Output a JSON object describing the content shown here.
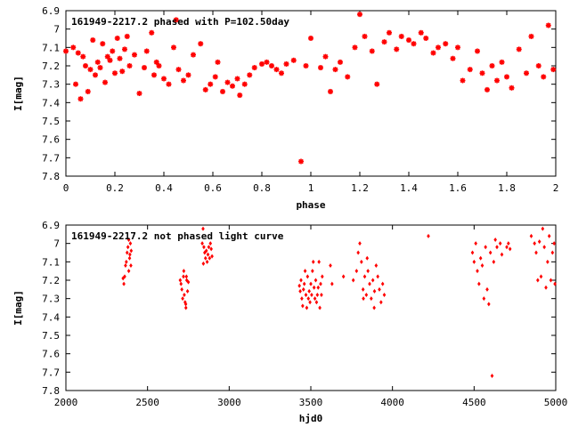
{
  "colors": {
    "series": "#ff0000",
    "axes": "#000000",
    "background": "#ffffff"
  },
  "chart_data": [
    {
      "type": "scatter",
      "title": "161949-2217.2 phased with P=102.50day",
      "xlabel": "phase",
      "ylabel": "I[mag]",
      "xlim": [
        0,
        2
      ],
      "ylim": [
        7.8,
        6.9
      ],
      "y_inverted": true,
      "grid": false,
      "xticks": [
        "0",
        "0.2",
        "0.4",
        "0.6",
        "0.8",
        "1",
        "1.2",
        "1.4",
        "1.6",
        "1.8",
        "2"
      ],
      "yticks": [
        "6.9",
        "7",
        "7.1",
        "7.2",
        "7.3",
        "7.4",
        "7.5",
        "7.6",
        "7.7",
        "7.8"
      ],
      "series": [
        {
          "marker": "asterisk",
          "x": [
            0.0,
            0.03,
            0.04,
            0.05,
            0.06,
            0.07,
            0.08,
            0.09,
            0.1,
            0.11,
            0.12,
            0.13,
            0.14,
            0.15,
            0.16,
            0.17,
            0.18,
            0.19,
            0.2,
            0.21,
            0.22,
            0.23,
            0.24,
            0.25,
            0.26,
            0.28,
            0.3,
            0.32,
            0.33,
            0.35,
            0.36,
            0.37,
            0.38,
            0.4,
            0.42,
            0.44,
            0.45,
            0.46,
            0.48,
            0.5,
            0.52,
            0.55,
            0.57,
            0.59,
            0.61,
            0.62,
            0.64,
            0.66,
            0.68,
            0.7,
            0.71,
            0.73,
            0.75,
            0.77,
            0.8,
            0.82,
            0.84,
            0.86,
            0.88,
            0.9,
            0.93,
            0.96,
            0.98,
            1.0,
            1.04,
            1.06,
            1.08,
            1.1,
            1.12,
            1.15,
            1.18,
            1.2,
            1.22,
            1.25,
            1.27,
            1.3,
            1.32,
            1.35,
            1.37,
            1.4,
            1.42,
            1.45,
            1.47,
            1.5,
            1.52,
            1.55,
            1.58,
            1.6,
            1.62,
            1.65,
            1.68,
            1.7,
            1.72,
            1.74,
            1.76,
            1.78,
            1.8,
            1.82,
            1.85,
            1.88,
            1.9,
            1.93,
            1.95,
            1.97,
            1.99
          ],
          "y": [
            7.12,
            7.1,
            7.3,
            7.13,
            7.38,
            7.15,
            7.2,
            7.34,
            7.22,
            7.06,
            7.25,
            7.18,
            7.21,
            7.08,
            7.29,
            7.15,
            7.17,
            7.12,
            7.24,
            7.05,
            7.16,
            7.23,
            7.11,
            7.04,
            7.2,
            7.14,
            7.35,
            7.21,
            7.12,
            7.02,
            7.25,
            7.18,
            7.2,
            7.27,
            7.3,
            7.1,
            6.95,
            7.22,
            7.28,
            7.25,
            7.14,
            7.08,
            7.33,
            7.3,
            7.26,
            7.18,
            7.34,
            7.29,
            7.31,
            7.27,
            7.36,
            7.3,
            7.25,
            7.21,
            7.19,
            7.18,
            7.2,
            7.22,
            7.24,
            7.19,
            7.17,
            7.72,
            7.2,
            7.05,
            7.21,
            7.15,
            7.34,
            7.22,
            7.18,
            7.26,
            7.1,
            6.92,
            7.04,
            7.12,
            7.3,
            7.07,
            7.02,
            7.11,
            7.04,
            7.06,
            7.08,
            7.02,
            7.05,
            7.13,
            7.1,
            7.08,
            7.16,
            7.1,
            7.28,
            7.22,
            7.12,
            7.24,
            7.33,
            7.2,
            7.28,
            7.18,
            7.26,
            7.32,
            7.11,
            7.24,
            7.04,
            7.2,
            7.26,
            6.98,
            7.22
          ]
        }
      ]
    },
    {
      "type": "scatter",
      "title": "161949-2217.2 not phased light curve",
      "xlabel": "hjd0",
      "ylabel": "I[mag]",
      "xlim": [
        2000,
        5000
      ],
      "ylim": [
        7.8,
        6.9
      ],
      "y_inverted": true,
      "grid": false,
      "xticks": [
        "2000",
        "2500",
        "3000",
        "3500",
        "4000",
        "4500",
        "5000"
      ],
      "yticks": [
        "6.9",
        "7",
        "7.1",
        "7.2",
        "7.3",
        "7.4",
        "7.5",
        "7.6",
        "7.7",
        "7.8"
      ],
      "series": [
        {
          "marker": "diamond",
          "x": [
            2350,
            2355,
            2360,
            2365,
            2370,
            2375,
            2380,
            2385,
            2390,
            2395,
            2400,
            2385,
            2392,
            2398,
            2700,
            2705,
            2710,
            2715,
            2720,
            2725,
            2730,
            2735,
            2740,
            2745,
            2750,
            2722,
            2734,
            2738,
            2835,
            2840,
            2845,
            2850,
            2855,
            2860,
            2865,
            2870,
            2875,
            2880,
            2885,
            2890,
            2895,
            2842,
            3430,
            3435,
            3440,
            3445,
            3450,
            3455,
            3460,
            3465,
            3470,
            3475,
            3480,
            3485,
            3490,
            3495,
            3500,
            3505,
            3510,
            3515,
            3520,
            3525,
            3530,
            3535,
            3540,
            3545,
            3550,
            3555,
            3560,
            3565,
            3570,
            3620,
            3630,
            3700,
            3760,
            3780,
            3790,
            3800,
            3810,
            3820,
            3830,
            3840,
            3850,
            3860,
            3870,
            3880,
            3890,
            3900,
            3910,
            3920,
            3930,
            3940,
            3950,
            3822,
            3845,
            3888,
            4220,
            4490,
            4500,
            4510,
            4520,
            4530,
            4540,
            4550,
            4560,
            4570,
            4580,
            4590,
            4600,
            4610,
            4620,
            4630,
            4640,
            4660,
            4670,
            4700,
            4710,
            4720,
            4850,
            4870,
            4880,
            4890,
            4900,
            4910,
            4920,
            4930,
            4940,
            4950,
            4960,
            4970,
            4980,
            4990,
            4995
          ],
          "y": [
            7.19,
            7.22,
            7.18,
            7.12,
            7.1,
            7.05,
            7.02,
            6.98,
            7.08,
            7.0,
            7.04,
            7.15,
            7.06,
            7.12,
            7.2,
            7.22,
            7.25,
            7.3,
            7.18,
            7.28,
            7.32,
            7.35,
            7.2,
            7.26,
            7.21,
            7.15,
            7.33,
            7.18,
            7.0,
            6.92,
            7.02,
            7.05,
            7.08,
            7.04,
            7.1,
            7.06,
            7.02,
            7.08,
            7.0,
            7.03,
            7.07,
            7.11,
            7.23,
            7.26,
            7.2,
            7.3,
            7.34,
            7.25,
            7.22,
            7.15,
            7.28,
            7.35,
            7.18,
            7.3,
            7.26,
            7.32,
            7.22,
            7.28,
            7.15,
            7.1,
            7.24,
            7.3,
            7.2,
            7.32,
            7.28,
            7.24,
            7.1,
            7.35,
            7.22,
            7.28,
            7.18,
            7.12,
            7.22,
            7.18,
            7.2,
            7.15,
            7.05,
            7.0,
            7.1,
            7.25,
            7.18,
            7.28,
            7.15,
            7.22,
            7.3,
            7.2,
            7.26,
            7.12,
            7.18,
            7.25,
            7.32,
            7.22,
            7.28,
            7.3,
            7.08,
            7.35,
            6.96,
            7.05,
            7.1,
            7.0,
            7.15,
            7.22,
            7.08,
            7.12,
            7.3,
            7.02,
            7.25,
            7.33,
            7.05,
            7.72,
            7.1,
            6.98,
            7.02,
            7.0,
            7.06,
            7.02,
            7.0,
            7.03,
            6.96,
            7.0,
            7.05,
            7.2,
            6.99,
            7.18,
            6.92,
            7.02,
            7.24,
            7.1,
            6.96,
            7.2,
            7.05,
            7.0,
            7.22
          ]
        }
      ]
    }
  ]
}
